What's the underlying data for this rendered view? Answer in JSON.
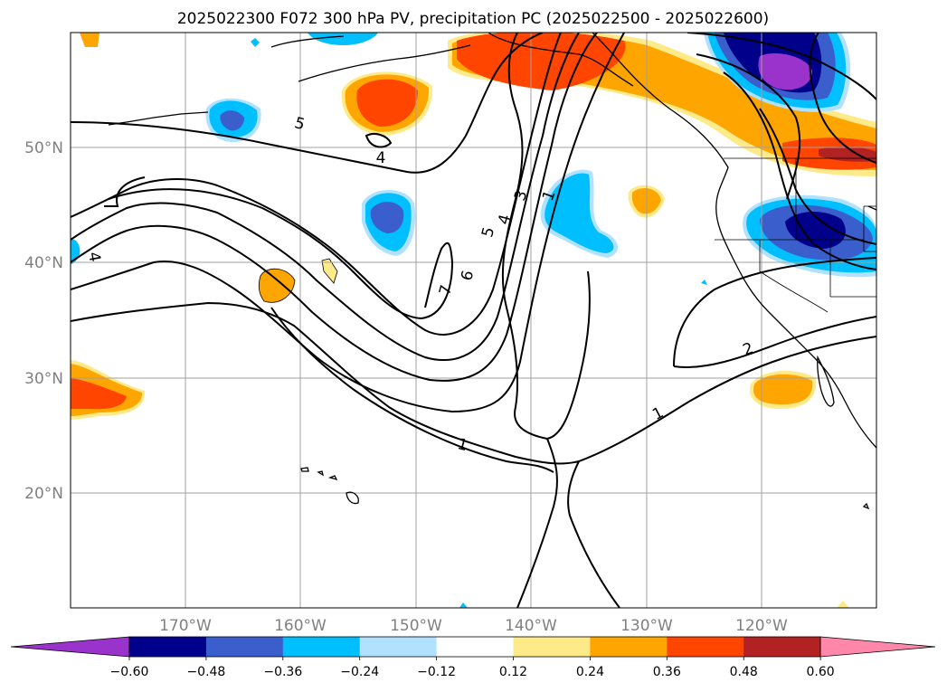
{
  "title": "2025022300 F072 300 hPa PV, precipitation PC (2025022500 - 2025022600)",
  "map": {
    "projection": "lat-lon",
    "gridlines": true,
    "lon_labels": [
      "170°W",
      "160°W",
      "150°W",
      "140°W",
      "130°W",
      "120°W"
    ],
    "lat_labels": [
      "50°N",
      "40°N",
      "30°N",
      "20°N"
    ],
    "contour_labels": [
      "5",
      "4",
      "5",
      "4",
      "3",
      "1",
      "6",
      "7",
      "4",
      "2",
      "1",
      "1"
    ]
  },
  "colorbar": {
    "orientation": "horizontal",
    "extend": "both",
    "tick_labels": [
      "−0.60",
      "−0.48",
      "−0.36",
      "−0.24",
      "−0.12",
      "0.12",
      "0.24",
      "0.36",
      "0.48",
      "0.60"
    ],
    "colors": [
      "#9933cc",
      "#00008b",
      "#3a5fcd",
      "#00bfff",
      "#b0e2ff",
      "#ffffff",
      "#ffea8a",
      "#ffa500",
      "#ff4500",
      "#b22222",
      "#ff88aa"
    ]
  }
}
